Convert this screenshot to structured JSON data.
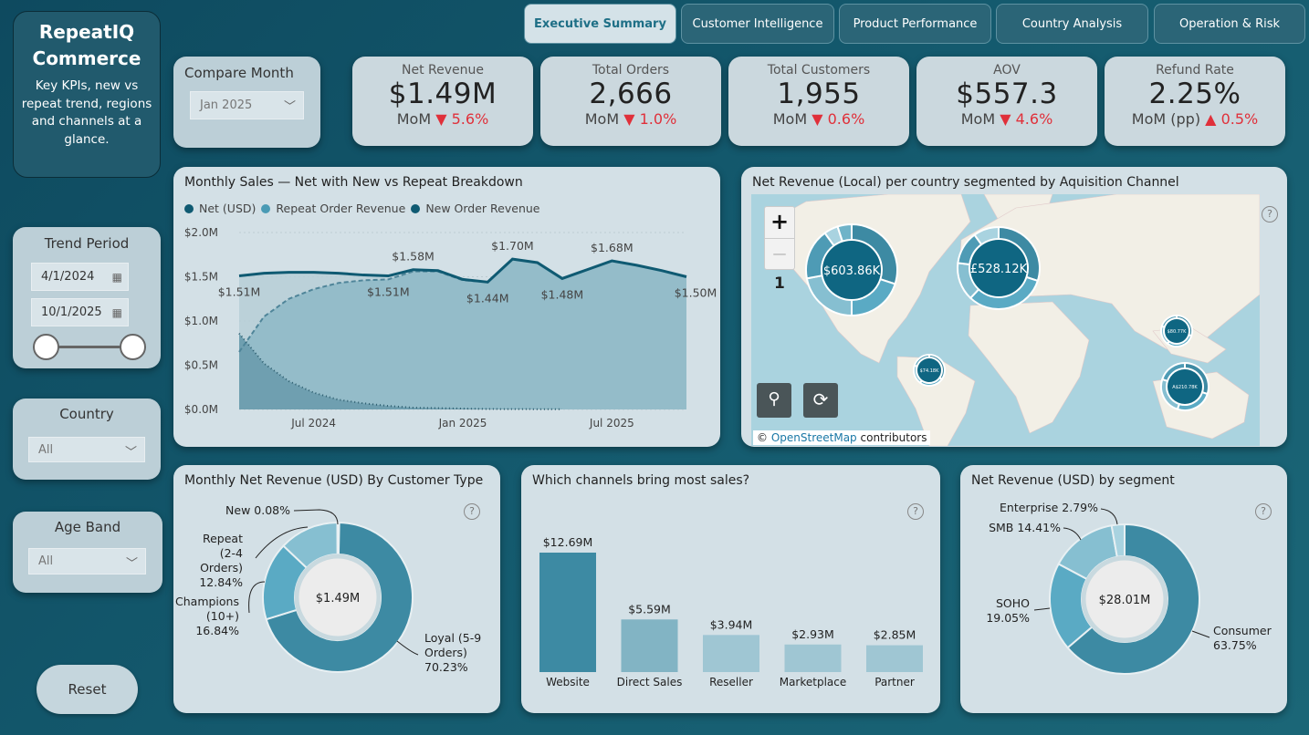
{
  "brand": {
    "title_line1": "RepeatIQ",
    "title_line2": "Commerce",
    "subtitle": "Key KPIs, new vs repeat trend, regions and channels at a glance."
  },
  "tabs": [
    {
      "label": "Executive Summary",
      "active": true
    },
    {
      "label": "Customer Intelligence"
    },
    {
      "label": "Product Performance"
    },
    {
      "label": "Country Analysis"
    },
    {
      "label": "Operation & Risk"
    }
  ],
  "compare_month": {
    "label": "Compare Month",
    "value": "Jan 2025"
  },
  "kpis": [
    {
      "label": "Net Revenue",
      "value": "$1.49M",
      "mom_label": "MoM",
      "direction": "down",
      "change": "5.6%"
    },
    {
      "label": "Total Orders",
      "value": "2,666",
      "mom_label": "MoM",
      "direction": "down",
      "change": "1.0%"
    },
    {
      "label": "Total Customers",
      "value": "1,955",
      "mom_label": "MoM",
      "direction": "down",
      "change": "0.6%"
    },
    {
      "label": "AOV",
      "value": "$557.3",
      "mom_label": "MoM",
      "direction": "down",
      "change": "4.6%"
    },
    {
      "label": "Refund Rate",
      "value": "2.25%",
      "mom_label": "MoM (pp)",
      "direction": "up",
      "change": "0.5%"
    }
  ],
  "arrows": {
    "down": "▼",
    "up": "▲"
  },
  "trend_period": {
    "label": "Trend Period",
    "start": "4/1/2024",
    "end": "10/1/2025"
  },
  "country": {
    "label": "Country",
    "value": "All"
  },
  "age_band": {
    "label": "Age Band",
    "value": "All"
  },
  "reset_label": "Reset",
  "colors": {
    "net": "#0f5a72",
    "repeat": "#4a9bb5",
    "new": "#0f5a72",
    "bar": "#3d8aa3",
    "bar_light": "#8fbccc",
    "accent": "#1e6f86",
    "down": "#e0303a"
  },
  "chart_data": [
    {
      "type": "area",
      "title": "Monthly Sales — Net with New vs Repeat Breakdown",
      "legend": [
        "Net (USD)",
        "Repeat Order Revenue",
        "New Order Revenue"
      ],
      "legend_placement": "top-left",
      "x": [
        "2024-04",
        "2024-05",
        "2024-06",
        "2024-07",
        "2024-08",
        "2024-09",
        "2024-10",
        "2024-11",
        "2024-12",
        "2025-01",
        "2025-02",
        "2025-03",
        "2025-04",
        "2025-05",
        "2025-06",
        "2025-07",
        "2025-08",
        "2025-09",
        "2025-10"
      ],
      "x_ticks": [
        "Jul 2024",
        "Jan 2025",
        "Jul 2025"
      ],
      "y_ticks": [
        "$0.0M",
        "$0.5M",
        "$1.0M",
        "$1.5M",
        "$2.0M"
      ],
      "ylim": [
        0,
        2.0
      ],
      "series": [
        {
          "name": "Net (USD)",
          "values": [
            1.51,
            1.54,
            1.55,
            1.55,
            1.54,
            1.52,
            1.51,
            1.58,
            1.57,
            1.47,
            1.44,
            1.7,
            1.66,
            1.48,
            1.58,
            1.68,
            1.63,
            1.57,
            1.5
          ]
        },
        {
          "name": "Repeat Order Revenue",
          "values": [
            0.65,
            1.05,
            1.25,
            1.36,
            1.43,
            1.46,
            1.47,
            1.56,
            1.56,
            1.46,
            1.44,
            1.7,
            1.66,
            1.48,
            1.58,
            1.68,
            1.63,
            1.57,
            1.5
          ]
        },
        {
          "name": "New Order Revenue",
          "values": [
            0.86,
            0.52,
            0.32,
            0.19,
            0.11,
            0.07,
            0.04,
            0.02,
            0.015,
            0.01,
            0.005,
            0.004,
            0.003,
            0.002,
            null,
            null,
            null,
            null,
            null
          ]
        }
      ],
      "data_labels": [
        {
          "i": 0,
          "text": "$1.51M",
          "pos": "below"
        },
        {
          "i": 6,
          "text": "$1.51M",
          "pos": "below"
        },
        {
          "i": 7,
          "text": "$1.58M",
          "pos": "above"
        },
        {
          "i": 10,
          "text": "$1.44M",
          "pos": "below"
        },
        {
          "i": 11,
          "text": "$1.70M",
          "pos": "above"
        },
        {
          "i": 13,
          "text": "$1.48M",
          "pos": "below"
        },
        {
          "i": 15,
          "text": "$1.68M",
          "pos": "above"
        },
        {
          "i": 18,
          "text": "$1.50M",
          "pos": "below"
        }
      ],
      "grid": true
    },
    {
      "type": "pie",
      "title": "Monthly Net Revenue (USD) By Customer Type",
      "center_label": "$1.49M",
      "slices": [
        {
          "name": "Loyal (5-9 Orders)",
          "value": 70.23,
          "label_lines": [
            "Loyal (5-9",
            "Orders)",
            "70.23%"
          ],
          "color": "#3d8aa3"
        },
        {
          "name": "Champions (10+)",
          "value": 16.84,
          "label_lines": [
            "Champions",
            "(10+)",
            "16.84%"
          ],
          "color": "#5aaac4"
        },
        {
          "name": "Repeat (2-4 Orders)",
          "value": 12.84,
          "label_lines": [
            "Repeat",
            "(2-4",
            "Orders)",
            "12.84%"
          ],
          "color": "#86bfd1"
        },
        {
          "name": "New",
          "value": 0.08,
          "label_lines": [
            "New 0.08%"
          ],
          "color": "#a9d3e0"
        }
      ]
    },
    {
      "type": "bar",
      "title": "Which channels bring most sales?",
      "categories": [
        "Website",
        "Direct Sales",
        "Reseller",
        "Marketplace",
        "Partner"
      ],
      "values": [
        12.69,
        5.59,
        3.94,
        2.93,
        2.85
      ],
      "data_labels": [
        "$12.69M",
        "$5.59M",
        "$3.94M",
        "$2.93M",
        "$2.85M"
      ]
    },
    {
      "type": "pie",
      "title": "Net Revenue (USD) by segment",
      "center_label": "$28.01M",
      "slices": [
        {
          "name": "Consumer",
          "value": 63.75,
          "label_lines": [
            "Consumer",
            "63.75%"
          ],
          "color": "#3d8aa3"
        },
        {
          "name": "SOHO",
          "value": 19.05,
          "label_lines": [
            "SOHO",
            "19.05%"
          ],
          "color": "#5aaac4"
        },
        {
          "name": "SMB",
          "value": 14.41,
          "label_lines": [
            "SMB 14.41%"
          ],
          "color": "#86bfd1"
        },
        {
          "name": "Enterprise",
          "value": 2.79,
          "label_lines": [
            "Enterprise 2.79%"
          ],
          "color": "#a9d3e0"
        }
      ]
    }
  ],
  "map": {
    "title": "Net Revenue (Local) per country segmented by Aquisition Channel",
    "zoom_in": "+",
    "zoom_out": "—",
    "zoom_level": "1",
    "attribution_prefix": "©",
    "attribution_link": "OpenStreetMap",
    "attribution_suffix": "contributors",
    "bubbles": [
      {
        "country": "United States",
        "label": "$603.86K",
        "shares": [
          0.3,
          0.2,
          0.22,
          0.18,
          0.05,
          0.05
        ]
      },
      {
        "country": "United Kingdom",
        "label": "£528.12K",
        "shares": [
          0.3,
          0.32,
          0.15,
          0.13,
          0.1
        ]
      },
      {
        "country": "Brazil",
        "label": "$74.18K",
        "shares": [
          0.35,
          0.25,
          0.2,
          0.2
        ]
      },
      {
        "country": "Singapore",
        "label": "$80.77K",
        "shares": [
          0.3,
          0.3,
          0.2,
          0.2
        ]
      },
      {
        "country": "Australia",
        "label": "A$210.78K",
        "shares": [
          0.3,
          0.25,
          0.25,
          0.2
        ]
      }
    ]
  },
  "help_icon": "?"
}
